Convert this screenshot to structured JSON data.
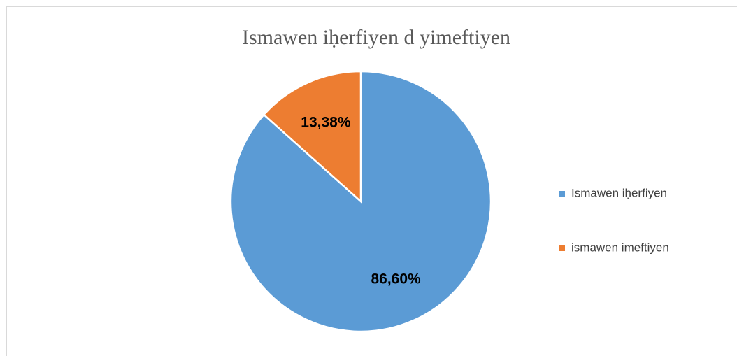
{
  "chart_data": {
    "type": "pie",
    "title": "Ismawen iḥerfiyen d yimeftiyen",
    "categories": [
      "Ismawen iḥerfiyen",
      "ismawen imeftiyen"
    ],
    "values": [
      86.6,
      13.38
    ],
    "value_labels": [
      "86,60%",
      "13,38%"
    ],
    "colors": [
      "#5b9bd5",
      "#ed7d31"
    ],
    "legend": "right"
  }
}
